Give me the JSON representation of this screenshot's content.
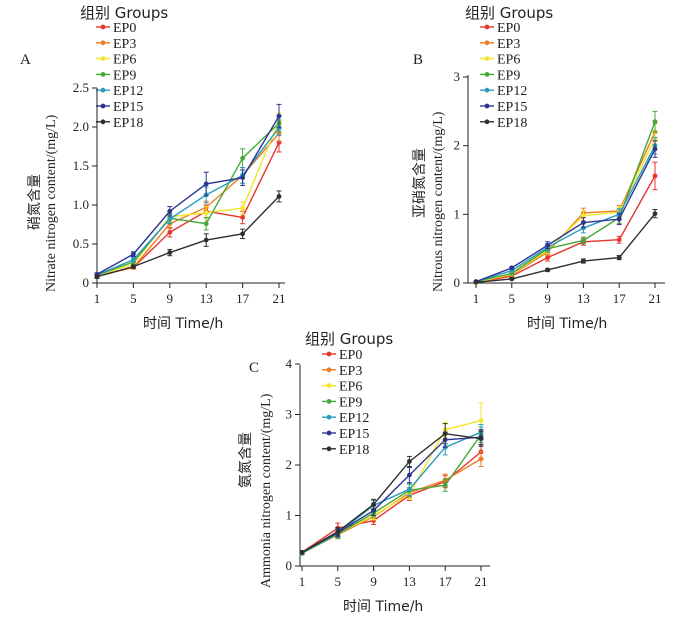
{
  "figure": {
    "legend_title": "组别 Groups",
    "colors": {
      "EP0": "#e8352c",
      "EP3": "#f07c1e",
      "EP6": "#f2e62a",
      "EP9": "#46a83a",
      "EP12": "#2a9bc0",
      "EP15": "#2b3590",
      "EP18": "#2f2f2f"
    }
  },
  "chart_data": [
    {
      "panel": "A",
      "type": "line",
      "x": [
        1,
        5,
        9,
        13,
        17,
        21
      ],
      "xlabel": "时间  Time/h",
      "ylabel_cn": "硝氮含量",
      "ylabel_en": "Nitrate nitrogen content/(mg/L)",
      "xlim": [
        1,
        21
      ],
      "ylim": [
        0,
        2.5
      ],
      "yticks": [
        "0",
        "0.5",
        "1.0",
        "1.5",
        "2.0",
        "2.5"
      ],
      "ytick_values": [
        0,
        0.5,
        1.0,
        1.5,
        2.0,
        2.5
      ],
      "legend_title": "组别 Groups",
      "series": [
        {
          "name": "EP0",
          "values": [
            0.09,
            0.2,
            0.65,
            0.92,
            0.84,
            1.8
          ],
          "err": [
            0.02,
            0.02,
            0.06,
            0.08,
            0.08,
            0.12
          ]
        },
        {
          "name": "EP3",
          "values": [
            0.09,
            0.2,
            0.76,
            0.97,
            1.38,
            1.92
          ],
          "err": [
            0.02,
            0.02,
            0.06,
            0.08,
            0.1,
            0.1
          ]
        },
        {
          "name": "EP6",
          "values": [
            0.1,
            0.24,
            0.85,
            0.9,
            0.96,
            2.08
          ],
          "err": [
            0.02,
            0.03,
            0.06,
            0.08,
            0.08,
            0.1
          ]
        },
        {
          "name": "EP9",
          "values": [
            0.1,
            0.27,
            0.83,
            0.76,
            1.6,
            2.05
          ],
          "err": [
            0.02,
            0.03,
            0.06,
            0.08,
            0.12,
            0.1
          ]
        },
        {
          "name": "EP12",
          "values": [
            0.1,
            0.3,
            0.82,
            1.13,
            1.38,
            1.99
          ],
          "err": [
            0.02,
            0.03,
            0.06,
            0.1,
            0.1,
            0.1
          ]
        },
        {
          "name": "EP15",
          "values": [
            0.11,
            0.37,
            0.92,
            1.27,
            1.35,
            2.14
          ],
          "err": [
            0.02,
            0.03,
            0.06,
            0.15,
            0.1,
            0.15
          ]
        },
        {
          "name": "EP18",
          "values": [
            0.08,
            0.21,
            0.39,
            0.55,
            0.63,
            1.11
          ],
          "err": [
            0.02,
            0.02,
            0.04,
            0.08,
            0.06,
            0.07
          ]
        }
      ]
    },
    {
      "panel": "B",
      "type": "line",
      "x": [
        1,
        5,
        9,
        13,
        17,
        21
      ],
      "xlabel": "时间  Time/h",
      "ylabel_cn": "亚硝氮含量",
      "ylabel_en": "Nitrous nitrogen content/(mg/L)",
      "xlim": [
        1,
        21
      ],
      "ylim": [
        0,
        3
      ],
      "yticks": [
        "0",
        "1",
        "2",
        "3"
      ],
      "ytick_values": [
        0,
        1,
        2,
        3
      ],
      "legend_title": "组别 Groups",
      "series": [
        {
          "name": "EP0",
          "values": [
            0.01,
            0.1,
            0.37,
            0.6,
            0.63,
            1.56
          ],
          "err": [
            0.01,
            0.02,
            0.05,
            0.05,
            0.05,
            0.2
          ]
        },
        {
          "name": "EP3",
          "values": [
            0.01,
            0.12,
            0.45,
            1.02,
            1.05,
            2.2
          ],
          "err": [
            0.01,
            0.02,
            0.05,
            0.07,
            0.08,
            0.12
          ]
        },
        {
          "name": "EP6",
          "values": [
            0.01,
            0.13,
            0.48,
            0.98,
            1.03,
            2.1
          ],
          "err": [
            0.01,
            0.02,
            0.05,
            0.07,
            0.08,
            0.12
          ]
        },
        {
          "name": "EP9",
          "values": [
            0.02,
            0.14,
            0.5,
            0.62,
            0.95,
            2.35
          ],
          "err": [
            0.01,
            0.02,
            0.05,
            0.05,
            0.08,
            0.15
          ]
        },
        {
          "name": "EP12",
          "values": [
            0.02,
            0.18,
            0.52,
            0.8,
            1.0,
            2.0
          ],
          "err": [
            0.01,
            0.02,
            0.05,
            0.07,
            0.08,
            0.12
          ]
        },
        {
          "name": "EP15",
          "values": [
            0.02,
            0.22,
            0.55,
            0.88,
            0.93,
            1.95
          ],
          "err": [
            0.01,
            0.02,
            0.05,
            0.07,
            0.08,
            0.12
          ]
        },
        {
          "name": "EP18",
          "values": [
            0.01,
            0.06,
            0.19,
            0.32,
            0.37,
            1.01
          ],
          "err": [
            0.01,
            0.01,
            0.02,
            0.03,
            0.03,
            0.06
          ]
        }
      ]
    },
    {
      "panel": "C",
      "type": "line",
      "x": [
        1,
        5,
        9,
        13,
        17,
        21
      ],
      "xlabel": "时间  Time/h",
      "ylabel_cn": "氨氮含量",
      "ylabel_en": "Ammonia nitrogen content/(mg/L)",
      "xlim": [
        1,
        21
      ],
      "ylim": [
        0,
        4
      ],
      "yticks": [
        "0",
        "1",
        "2",
        "3",
        "4"
      ],
      "ytick_values": [
        0,
        1,
        2,
        3,
        4
      ],
      "legend_title": "组别 Groups",
      "series": [
        {
          "name": "EP0",
          "values": [
            0.27,
            0.75,
            0.9,
            1.4,
            1.67,
            2.26
          ],
          "err": [
            0.03,
            0.1,
            0.08,
            0.1,
            0.12,
            0.15
          ]
        },
        {
          "name": "EP3",
          "values": [
            0.26,
            0.62,
            0.98,
            1.45,
            1.7,
            2.12
          ],
          "err": [
            0.03,
            0.08,
            0.08,
            0.1,
            0.12,
            0.15
          ]
        },
        {
          "name": "EP6",
          "values": [
            0.25,
            0.64,
            1.0,
            1.42,
            2.7,
            2.88
          ],
          "err": [
            0.03,
            0.08,
            0.08,
            0.1,
            0.15,
            0.35
          ]
        },
        {
          "name": "EP9",
          "values": [
            0.25,
            0.63,
            1.05,
            1.5,
            1.6,
            2.6
          ],
          "err": [
            0.03,
            0.08,
            0.08,
            0.12,
            0.12,
            0.15
          ]
        },
        {
          "name": "EP12",
          "values": [
            0.26,
            0.65,
            1.2,
            1.52,
            2.35,
            2.65
          ],
          "err": [
            0.03,
            0.08,
            0.1,
            0.12,
            0.15,
            0.15
          ]
        },
        {
          "name": "EP15",
          "values": [
            0.27,
            0.66,
            1.1,
            1.8,
            2.5,
            2.55
          ],
          "err": [
            0.03,
            0.08,
            0.1,
            0.15,
            0.15,
            0.15
          ]
        },
        {
          "name": "EP18",
          "values": [
            0.27,
            0.68,
            1.22,
            2.07,
            2.62,
            2.52
          ],
          "err": [
            0.03,
            0.08,
            0.1,
            0.1,
            0.2,
            0.15
          ]
        }
      ]
    }
  ]
}
